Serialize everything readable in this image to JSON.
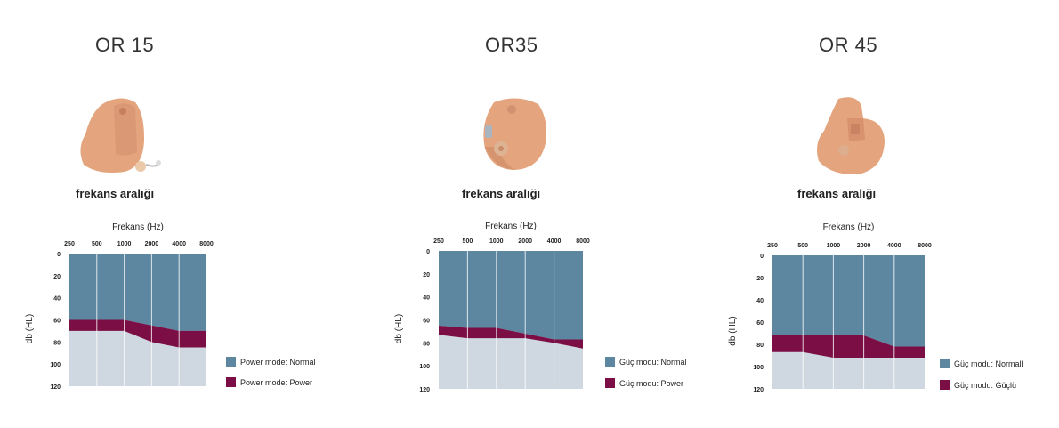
{
  "colors": {
    "normal": "#5d87a1",
    "power": "#7b0f45",
    "region": "#cfd8e0",
    "grid": "#ffffff",
    "skin": "#e0a07a"
  },
  "panels": [
    {
      "title": "OR 15",
      "range_label": "frekans aralığı",
      "legend": [
        "Power mode: Normal",
        "Power mode: Power"
      ],
      "chart_data": {
        "type": "area",
        "title": "",
        "xlabel": "Frekans (Hz)",
        "ylabel": "db (HL)",
        "x_ticks": [
          "250",
          "500",
          "1000",
          "2000",
          "4000",
          "8000"
        ],
        "y_ticks": [
          "0",
          "20",
          "40",
          "60",
          "80",
          "100",
          "120"
        ],
        "ylim": [
          0,
          120
        ],
        "y_inverted": true,
        "series": [
          {
            "name": "Power mode: Normal",
            "x": [
              "250",
              "500",
              "1000",
              "2000",
              "4000",
              "8000"
            ],
            "values": [
              60,
              60,
              60,
              65,
              70,
              70
            ]
          },
          {
            "name": "Power mode: Power",
            "x": [
              "250",
              "500",
              "1000",
              "2000",
              "4000",
              "8000"
            ],
            "values": [
              70,
              70,
              70,
              80,
              85,
              85
            ]
          }
        ]
      }
    },
    {
      "title": "OR35",
      "range_label": "frekans aralığı",
      "legend": [
        "Güç modu: Normal",
        "Güç modu: Power"
      ],
      "chart_data": {
        "type": "area",
        "title": "",
        "xlabel": "Frekans (Hz)",
        "ylabel": "db (HL)",
        "x_ticks": [
          "250",
          "500",
          "1000",
          "2000",
          "4000",
          "8000"
        ],
        "y_ticks": [
          "0",
          "20",
          "40",
          "60",
          "80",
          "100",
          "120"
        ],
        "ylim": [
          0,
          120
        ],
        "y_inverted": true,
        "series": [
          {
            "name": "Güç modu: Normal",
            "x": [
              "250",
              "500",
              "1000",
              "2000",
              "4000",
              "8000"
            ],
            "values": [
              65,
              67,
              67,
              72,
              77,
              77
            ]
          },
          {
            "name": "Güç modu: Power",
            "x": [
              "250",
              "500",
              "1000",
              "2000",
              "4000",
              "8000"
            ],
            "values": [
              73,
              76,
              76,
              76,
              80,
              85
            ]
          }
        ]
      }
    },
    {
      "title": "OR 45",
      "range_label": "frekans aralığı",
      "legend": [
        "Güç modu: Normall",
        "Güç modu: Güçlü"
      ],
      "chart_data": {
        "type": "area",
        "title": "",
        "xlabel": "Frekans (Hz)",
        "ylabel": "db (HL)",
        "x_ticks": [
          "250",
          "500",
          "1000",
          "2000",
          "4000",
          "8000"
        ],
        "y_ticks": [
          "0",
          "20",
          "40",
          "60",
          "80",
          "100",
          "120"
        ],
        "ylim": [
          0,
          120
        ],
        "y_inverted": true,
        "series": [
          {
            "name": "Güç modu: Normall",
            "x": [
              "250",
              "500",
              "1000",
              "2000",
              "4000",
              "8000"
            ],
            "values": [
              72,
              72,
              72,
              72,
              82,
              82
            ]
          },
          {
            "name": "Güç modu: Güçlü",
            "x": [
              "250",
              "500",
              "1000",
              "2000",
              "4000",
              "8000"
            ],
            "values": [
              87,
              87,
              92,
              92,
              92,
              92
            ]
          }
        ]
      }
    }
  ]
}
